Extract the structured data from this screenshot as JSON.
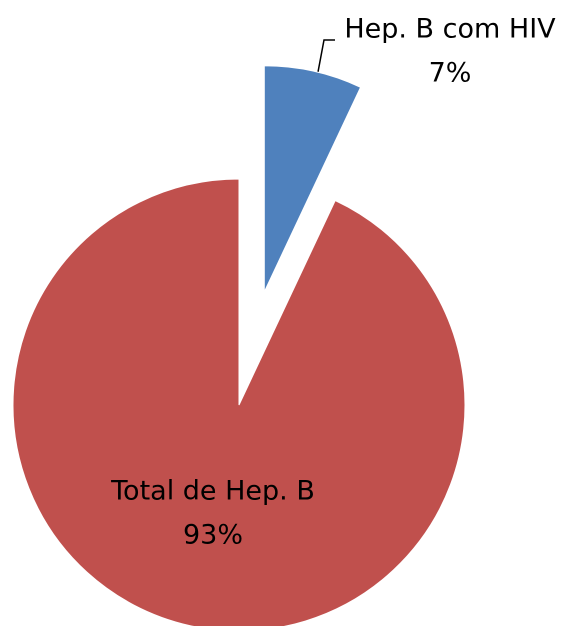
{
  "chart_data": {
    "type": "pie",
    "categories": [
      "Hep. B com HIV",
      "Total de Hep. B"
    ],
    "values": [
      7,
      93
    ],
    "value_labels": [
      "7%",
      "93%"
    ],
    "colors": [
      "#4f81bd",
      "#c0504d"
    ]
  }
}
